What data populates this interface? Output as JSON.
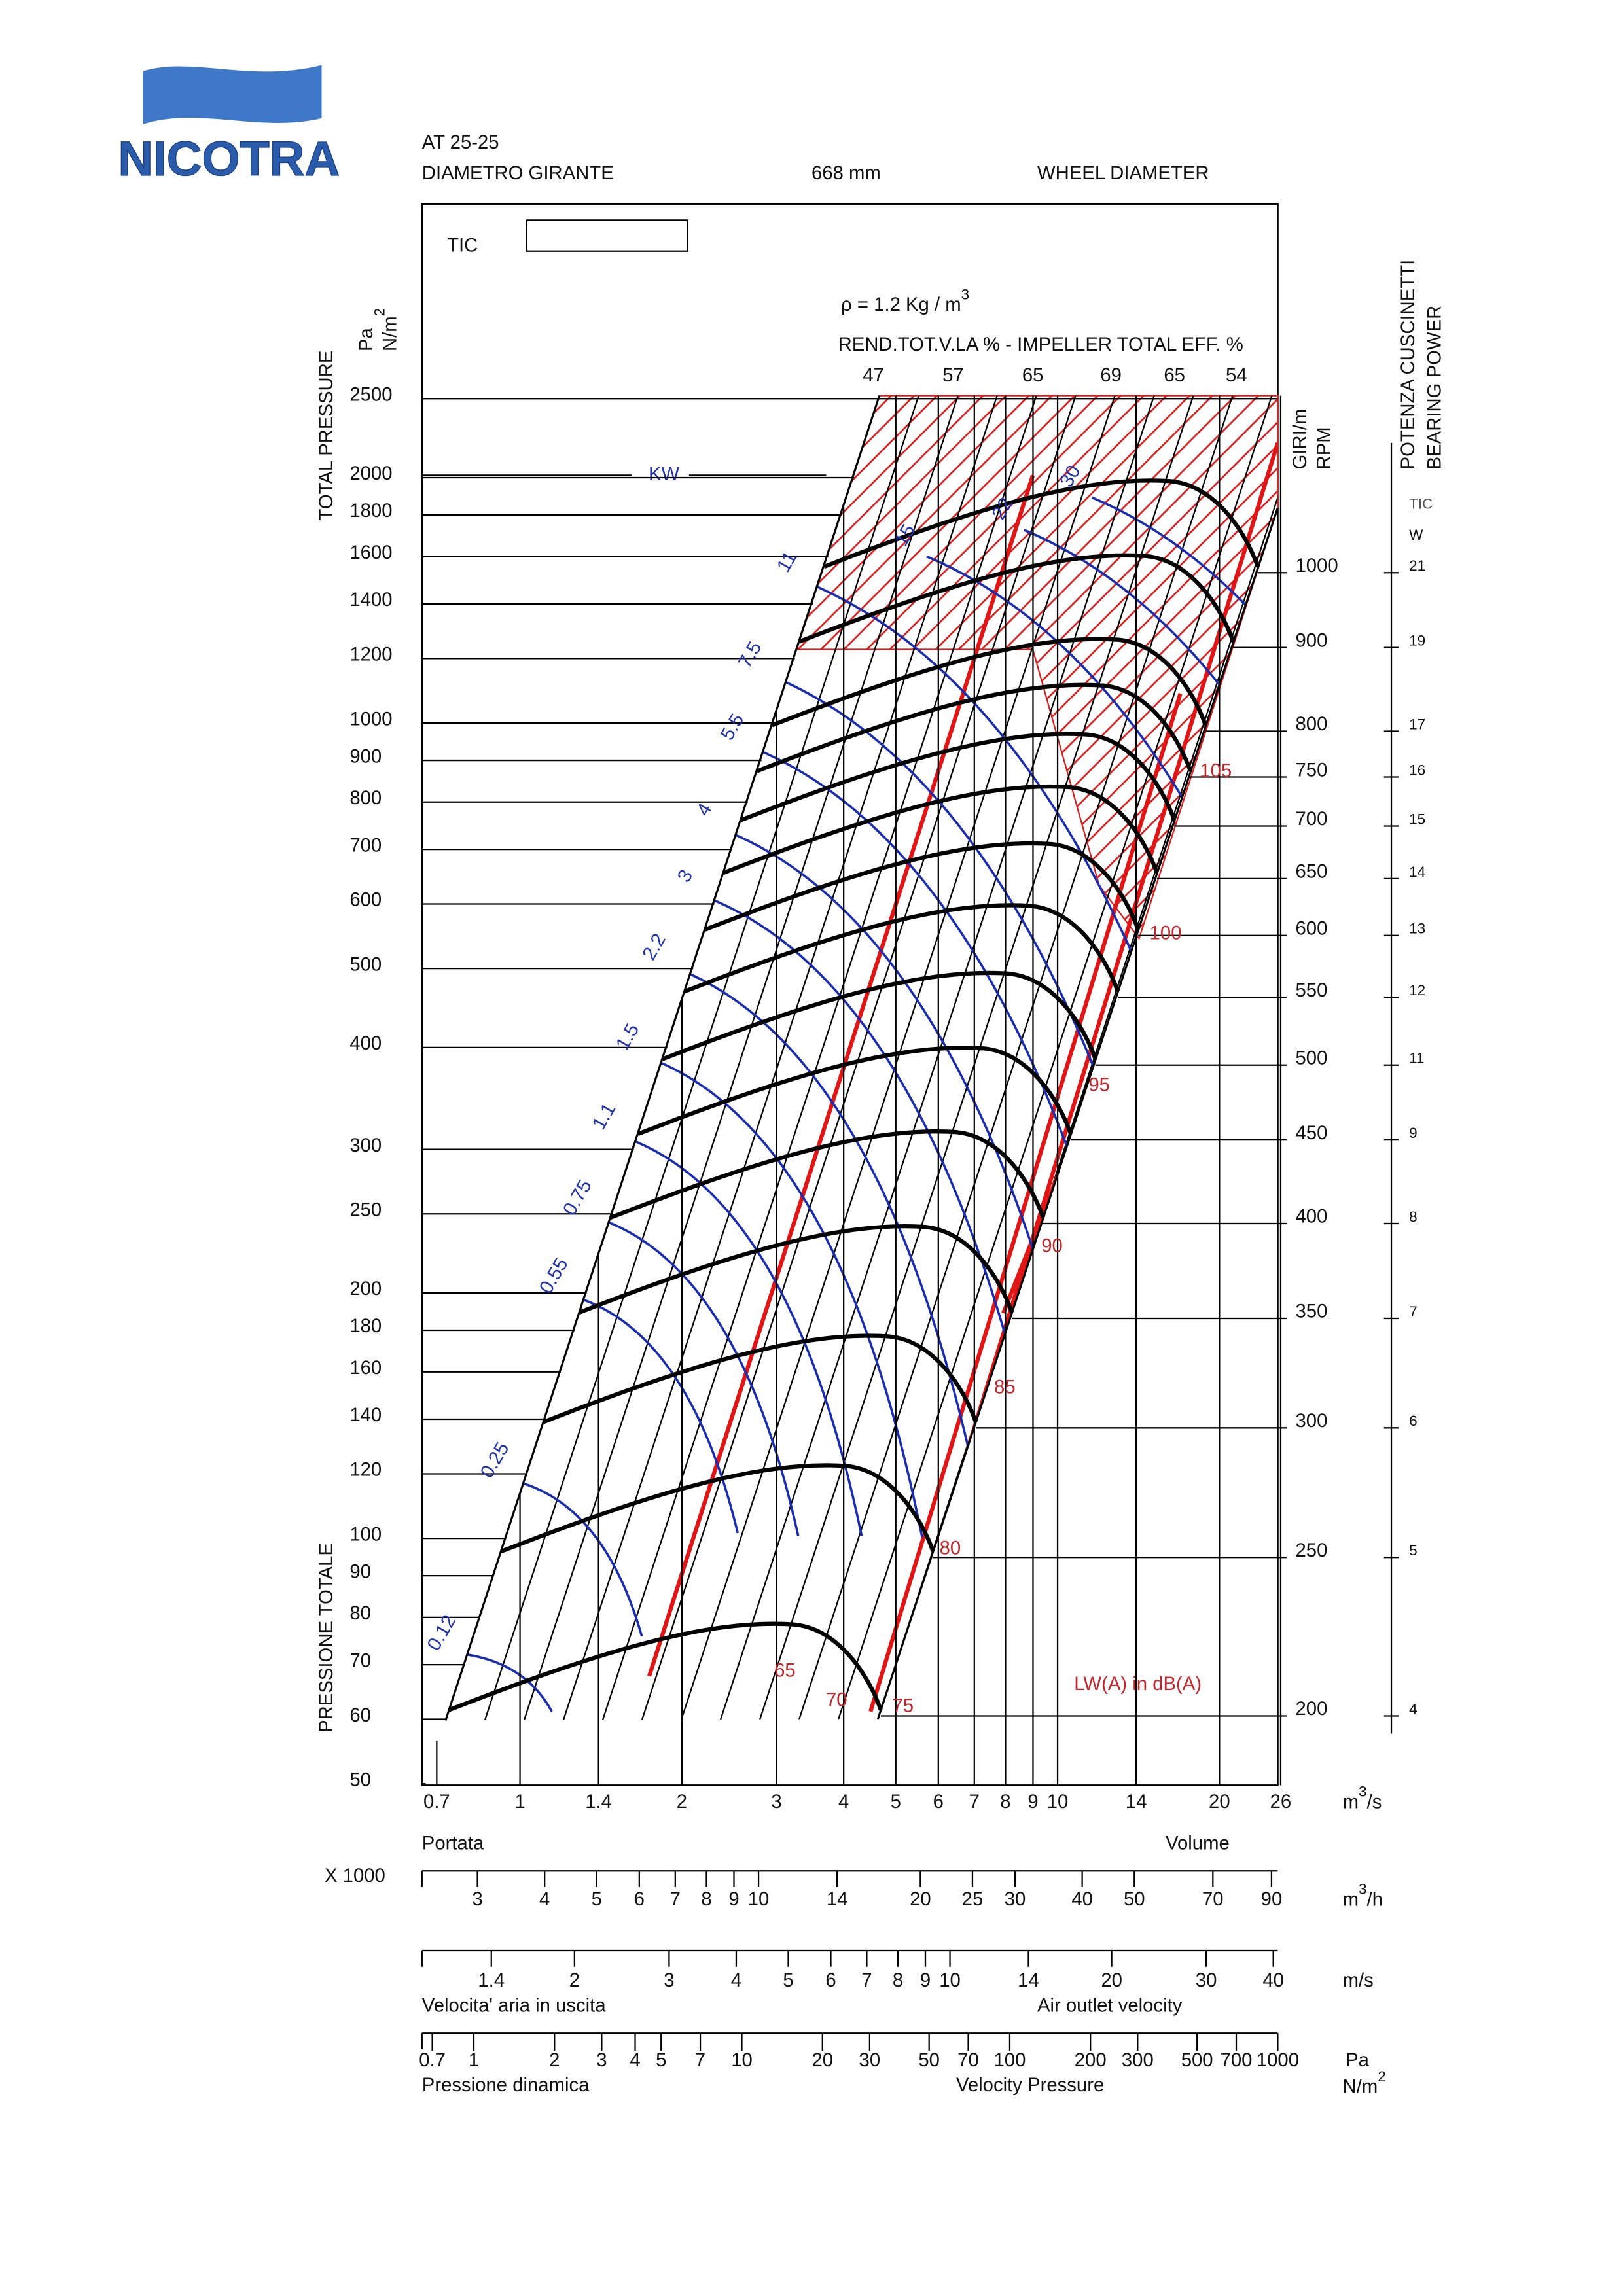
{
  "logo": "NICOTRA",
  "header": {
    "model": "AT 25-25",
    "diameter_label": "DIAMETRO GIRANTE",
    "diameter": "668 mm",
    "diameter_label_en": "WHEEL DIAMETER"
  },
  "tic_label": "TIC",
  "density": {
    "text": "ρ = 1.2 Kg / m",
    "exponent": "3"
  },
  "efficiency": {
    "title": "REND.TOT.V.LA % - IMPELLER TOTAL EFF. %",
    "values": [
      47,
      57,
      65,
      69,
      65,
      54
    ]
  },
  "pressure_axis": {
    "title": "TOTAL PRESSURE",
    "title_it": "PRESSIONE TOTALE",
    "unit": "Pa",
    "unit_alt": "N/m",
    "unit_alt_exp": "2",
    "ticks": [
      50,
      60,
      70,
      80,
      90,
      100,
      120,
      140,
      160,
      180,
      200,
      250,
      300,
      400,
      500,
      600,
      700,
      800,
      900,
      1000,
      1200,
      1400,
      1600,
      1800,
      2000,
      2500
    ]
  },
  "rpm_axis": {
    "title": "GIRI/m",
    "title_en": "RPM",
    "ticks": [
      1000,
      900,
      800,
      750,
      700,
      650,
      600,
      550,
      500,
      450,
      400,
      350,
      300,
      250,
      200
    ]
  },
  "power_axis": {
    "title": "POTENZA CUSCINETTI",
    "title_en": "BEARING POWER",
    "tic": "TIC",
    "unit": "W",
    "values": [
      21,
      19,
      17,
      16,
      15,
      14,
      13,
      12,
      11,
      9,
      8,
      7,
      6,
      5,
      4
    ]
  },
  "kw": {
    "title": "KW",
    "values": [
      0.12,
      0.25,
      0.55,
      0.75,
      1.1,
      1.5,
      2.2,
      3,
      4,
      5.5,
      7.5,
      11,
      15,
      22,
      30
    ]
  },
  "noise": {
    "title": "LW(A) in dB(A)",
    "values": [
      65,
      70,
      75,
      80,
      85,
      90,
      95,
      100,
      105
    ]
  },
  "flow_axis": {
    "label_it": "Portata",
    "label_en": "Volume",
    "unit": "m",
    "unit_exp": "3",
    "unit_suffix": "/s",
    "ticks": [
      0.7,
      1,
      1.4,
      2,
      3,
      4,
      5,
      6,
      7,
      8,
      9,
      10,
      14,
      20,
      26
    ]
  },
  "flow_h_axis": {
    "multiplier": "X 1000",
    "unit": "m",
    "unit_exp": "3",
    "unit_suffix": "/h",
    "ticks": [
      3,
      4,
      5,
      6,
      7,
      8,
      9,
      10,
      14,
      20,
      25,
      30,
      40,
      50,
      70,
      90
    ]
  },
  "velocity_axis": {
    "label_it": "Velocita' aria in uscita",
    "label_en": "Air outlet velocity",
    "unit": "m/s",
    "ticks": [
      1.4,
      2,
      3,
      4,
      5,
      6,
      7,
      8,
      9,
      10,
      14,
      20,
      30,
      40
    ]
  },
  "velocity_pressure_axis": {
    "label_it": "Pressione dinamica",
    "label_en": "Velocity Pressure",
    "unit": "Pa",
    "unit_alt": "N/m",
    "unit_alt_exp": "2",
    "ticks": [
      0.7,
      1,
      2,
      3,
      4,
      5,
      7,
      10,
      20,
      30,
      50,
      70,
      100,
      200,
      300,
      500,
      700,
      1000
    ]
  }
}
